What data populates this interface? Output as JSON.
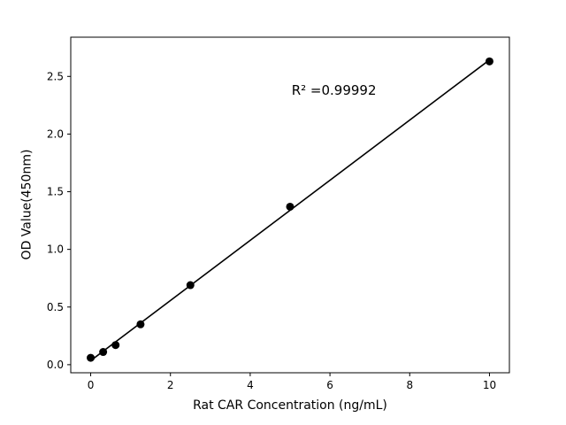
{
  "figure": {
    "background": "#ffffff",
    "text_color": "#000000"
  },
  "chart_data": {
    "type": "scatter",
    "title": "",
    "xlabel": "Rat CAR Concentration (ng/mL)",
    "ylabel": "OD Value(450nm)",
    "x": [
      0,
      0.3125,
      0.625,
      1.25,
      2.5,
      5,
      10
    ],
    "y": [
      0.06,
      0.11,
      0.17,
      0.35,
      0.69,
      1.37,
      2.63
    ],
    "fit_line": true,
    "annotation": {
      "text": "R² =0.99992",
      "x": 6.1,
      "y": 2.38
    },
    "xticks": [
      0,
      2,
      4,
      6,
      8,
      10
    ],
    "yticks": [
      0.0,
      0.5,
      1.0,
      1.5,
      2.0,
      2.5
    ],
    "xlim": [
      -0.5,
      10.5
    ],
    "ylim": [
      -0.07,
      2.84
    ],
    "grid": false,
    "legend": "none",
    "marker_color": "#000000",
    "line_color": "#000000"
  }
}
